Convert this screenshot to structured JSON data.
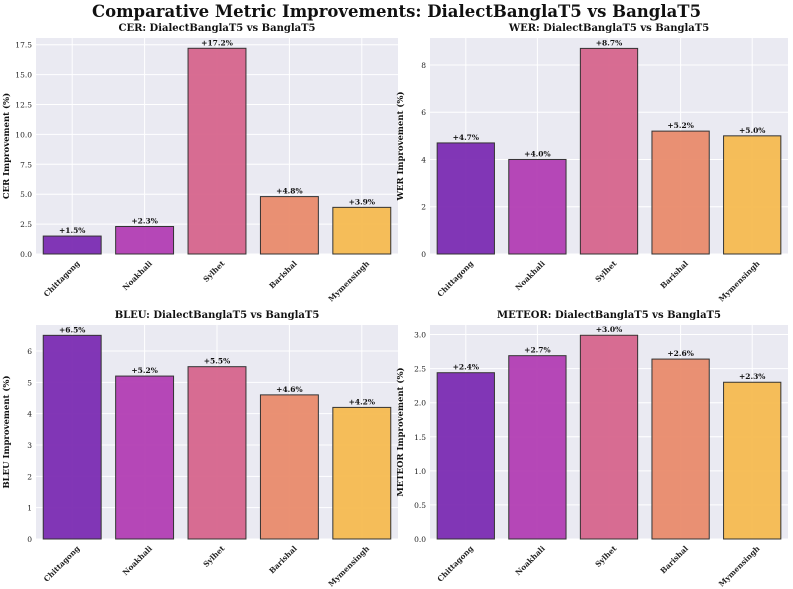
{
  "figure_title": "Comparative Metric Improvements: DialectBanglaT5 vs BanglaT5",
  "colors": [
    "#7b2cb2",
    "#b23eb3",
    "#d6658c",
    "#e98b6c",
    "#f5bb50"
  ],
  "chart_data": [
    {
      "type": "bar",
      "title": "CER: DialectBanglaT5 vs BanglaT5",
      "ylabel": "CER Improvement (%)",
      "xlabel": "",
      "categories": [
        "Chittagong",
        "Noakhali",
        "Sylhet",
        "Barishal",
        "Mymensingh"
      ],
      "values": [
        1.5,
        2.3,
        17.2,
        4.8,
        3.9
      ],
      "data_labels": [
        "+1.5%",
        "+2.3%",
        "+17.2%",
        "+4.8%",
        "+3.9%"
      ],
      "ylim": [
        0,
        18.06
      ],
      "yticks": [
        0.0,
        2.5,
        5.0,
        7.5,
        10.0,
        12.5,
        15.0,
        17.5
      ],
      "ytick_labels": [
        "0.0",
        "2.5",
        "5.0",
        "7.5",
        "10.0",
        "12.5",
        "15.0",
        "17.5"
      ],
      "grid": true
    },
    {
      "type": "bar",
      "title": "WER: DialectBanglaT5 vs BanglaT5",
      "ylabel": "WER Improvement (%)",
      "xlabel": "",
      "categories": [
        "Chittagong",
        "Noakhali",
        "Sylhet",
        "Barishal",
        "Mymensingh"
      ],
      "values": [
        4.7,
        4.0,
        8.7,
        5.2,
        5.0
      ],
      "data_labels": [
        "+4.7%",
        "+4.0%",
        "+8.7%",
        "+5.2%",
        "+5.0%"
      ],
      "ylim": [
        0,
        9.14
      ],
      "yticks": [
        0,
        2,
        4,
        6,
        8
      ],
      "ytick_labels": [
        "0",
        "2",
        "4",
        "6",
        "8"
      ],
      "grid": true
    },
    {
      "type": "bar",
      "title": "BLEU: DialectBanglaT5 vs BanglaT5",
      "ylabel": "BLEU Improvement (%)",
      "xlabel": "",
      "categories": [
        "Chittagong",
        "Noakhali",
        "Sylhet",
        "Barishal",
        "Mymensingh"
      ],
      "values": [
        6.5,
        5.2,
        5.5,
        4.6,
        4.2
      ],
      "data_labels": [
        "+6.5%",
        "+5.2%",
        "+5.5%",
        "+4.6%",
        "+4.2%"
      ],
      "ylim": [
        0,
        6.83
      ],
      "yticks": [
        0,
        1,
        2,
        3,
        4,
        5,
        6
      ],
      "ytick_labels": [
        "0",
        "1",
        "2",
        "3",
        "4",
        "5",
        "6"
      ],
      "grid": true
    },
    {
      "type": "bar",
      "title": "METEOR: DialectBanglaT5 vs BanglaT5",
      "ylabel": "METEOR Improvement (%)",
      "xlabel": "",
      "categories": [
        "Chittagong",
        "Noakhali",
        "Sylhet",
        "Barishal",
        "Mymensingh"
      ],
      "values": [
        2.44,
        2.69,
        2.99,
        2.64,
        2.3
      ],
      "data_labels": [
        "+2.4%",
        "+2.7%",
        "+3.0%",
        "+2.6%",
        "+2.3%"
      ],
      "ylim": [
        0,
        3.14
      ],
      "yticks": [
        0.0,
        0.5,
        1.0,
        1.5,
        2.0,
        2.5,
        3.0
      ],
      "ytick_labels": [
        "0.0",
        "0.5",
        "1.0",
        "1.5",
        "2.0",
        "2.5",
        "3.0"
      ],
      "grid": true
    }
  ]
}
